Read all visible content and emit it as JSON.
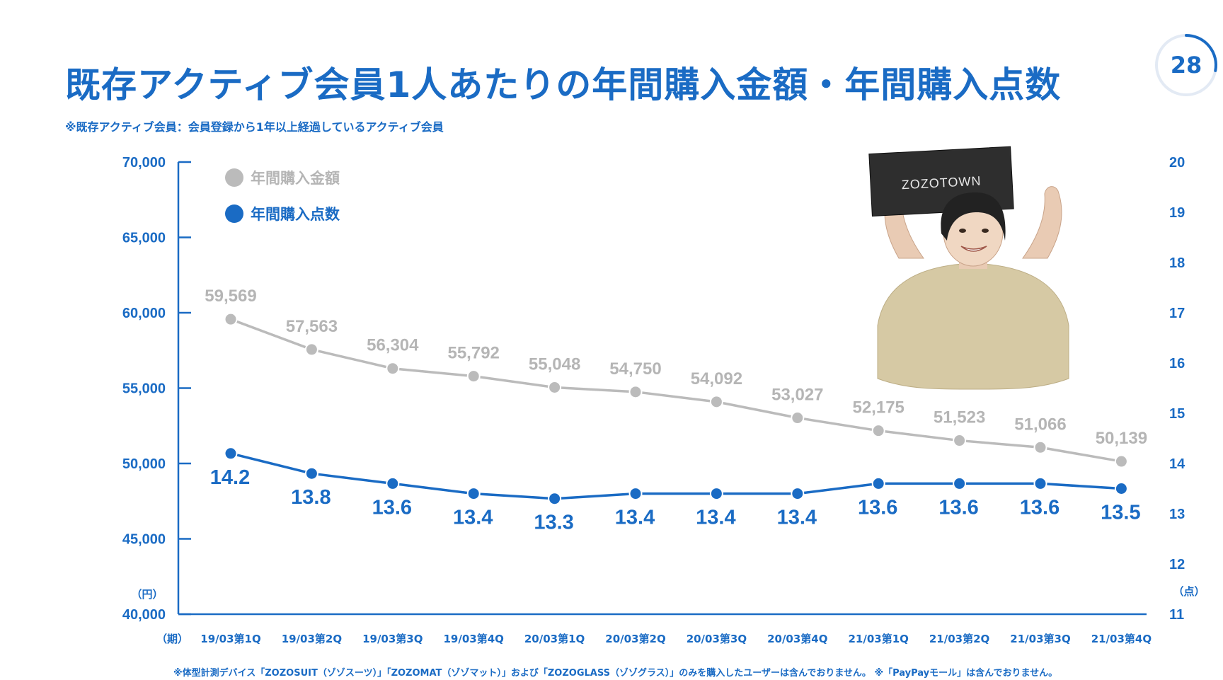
{
  "header": {
    "title": "既存アクティブ会員1人あたりの年間購入金額・年間購入点数",
    "subtitle": "※既存アクティブ会員：会員登録から1年以上経過しているアクティブ会員",
    "page_number": "28",
    "page_progress": 0.28
  },
  "footnote": "※体型計測デバイス「ZOZOSUIT（ゾゾスーツ）」「ZOZOMAT（ゾゾマット）」および「ZOZOGLASS（ゾゾグラス）」のみを購入したユーザーは含んでおりません。 ※「PayPayモール」は含んでおりません。",
  "illustration": {
    "box_label": "ZOZOTOWN"
  },
  "colors": {
    "accent": "#1a6bc4",
    "gray_series": "#bbbbbb",
    "gray_label": "#b5b5b5"
  },
  "chart_data": {
    "type": "line",
    "x_prefix_label": "（期）",
    "categories": [
      "19/03第1Q",
      "19/03第2Q",
      "19/03第3Q",
      "19/03第4Q",
      "20/03第1Q",
      "20/03第2Q",
      "20/03第3Q",
      "20/03第4Q",
      "21/03第1Q",
      "21/03第2Q",
      "21/03第3Q",
      "21/03第4Q"
    ],
    "series": [
      {
        "name": "年間購入金額",
        "axis": "left",
        "color": "#bbbbbb",
        "values": [
          59569,
          57563,
          56304,
          55792,
          55048,
          54750,
          54092,
          53027,
          52175,
          51523,
          51066,
          50139
        ],
        "labels": [
          "59,569",
          "57,563",
          "56,304",
          "55,792",
          "55,048",
          "54,750",
          "54,092",
          "53,027",
          "52,175",
          "51,523",
          "51,066",
          "50,139"
        ]
      },
      {
        "name": "年間購入点数",
        "axis": "right",
        "color": "#1a6bc4",
        "values": [
          14.2,
          13.8,
          13.6,
          13.4,
          13.3,
          13.4,
          13.4,
          13.4,
          13.6,
          13.6,
          13.6,
          13.5
        ],
        "labels": [
          "14.2",
          "13.8",
          "13.6",
          "13.4",
          "13.3",
          "13.4",
          "13.4",
          "13.4",
          "13.6",
          "13.6",
          "13.6",
          "13.5"
        ]
      }
    ],
    "y_left": {
      "unit_label": "（円）",
      "min": 40000,
      "max": 70000,
      "ticks": [
        40000,
        45000,
        50000,
        55000,
        60000,
        65000,
        70000
      ],
      "tick_labels": [
        "40,000",
        "45,000",
        "50,000",
        "55,000",
        "60,000",
        "65,000",
        "70,000"
      ]
    },
    "y_right": {
      "unit_label": "（点）",
      "min": 11,
      "max": 20,
      "ticks": [
        11,
        12,
        13,
        14,
        15,
        16,
        17,
        18,
        19,
        20
      ],
      "tick_labels": [
        "11",
        "12",
        "13",
        "14",
        "15",
        "16",
        "17",
        "18",
        "19",
        "20"
      ]
    },
    "legend_position": "top-left",
    "grid": false
  }
}
